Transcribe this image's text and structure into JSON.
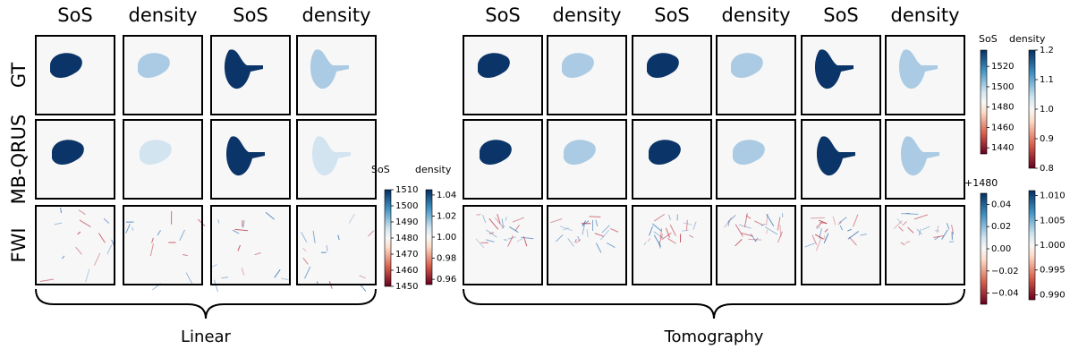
{
  "groups": [
    {
      "label": "Linear",
      "columns": [
        "SoS",
        "density",
        "SoS",
        "density"
      ]
    },
    {
      "label": "Tomography",
      "columns": [
        "SoS",
        "density",
        "SoS",
        "density",
        "SoS",
        "density"
      ]
    }
  ],
  "rows": [
    "GT",
    "MB-QRUS",
    "FWI"
  ],
  "colorbars": [
    {
      "labels": [
        "SoS",
        "density"
      ],
      "bars": [
        {
          "ylim": [
            1450,
            1510
          ],
          "yticks": [
            1510,
            1500,
            1490,
            1480,
            1470,
            1460,
            1450
          ]
        },
        {
          "ylim": [
            0.955,
            1.045
          ],
          "yticks": [
            1.04,
            1.02,
            {
              "value": 1,
              "label": "1.00"
            },
            0.98,
            0.96
          ]
        }
      ]
    },
    {
      "labels": [
        "SoS",
        "density"
      ],
      "bars": [
        {
          "ylim": [
            1434,
            1536
          ],
          "yticks": [
            1520,
            1500,
            1480,
            1460,
            1440
          ]
        },
        {
          "ylim": [
            0.8,
            1.2
          ],
          "yticks": [
            1.2,
            1.1,
            {
              "value": 1,
              "label": "1.0"
            },
            0.9,
            0.8
          ]
        }
      ]
    },
    {
      "offset": "+1480",
      "bars": [
        {
          "ylim": [
            -0.05,
            0.05
          ],
          "yticks": [
            0.04,
            0.02,
            {
              "value": 0,
              "label": "0.00"
            },
            {
              "value": -0.02,
              "label": "−0.02"
            },
            {
              "value": -0.04,
              "label": "−0.04"
            }
          ]
        },
        {
          "ylim": [
            0.989,
            1.011
          ],
          "yticks": [
            {
              "value": 1.01,
              "label": "1.010"
            },
            1.005,
            {
              "value": 1,
              "label": "1.000"
            },
            0.995,
            {
              "value": 0.99,
              "label": "0.990"
            }
          ]
        }
      ]
    }
  ]
}
